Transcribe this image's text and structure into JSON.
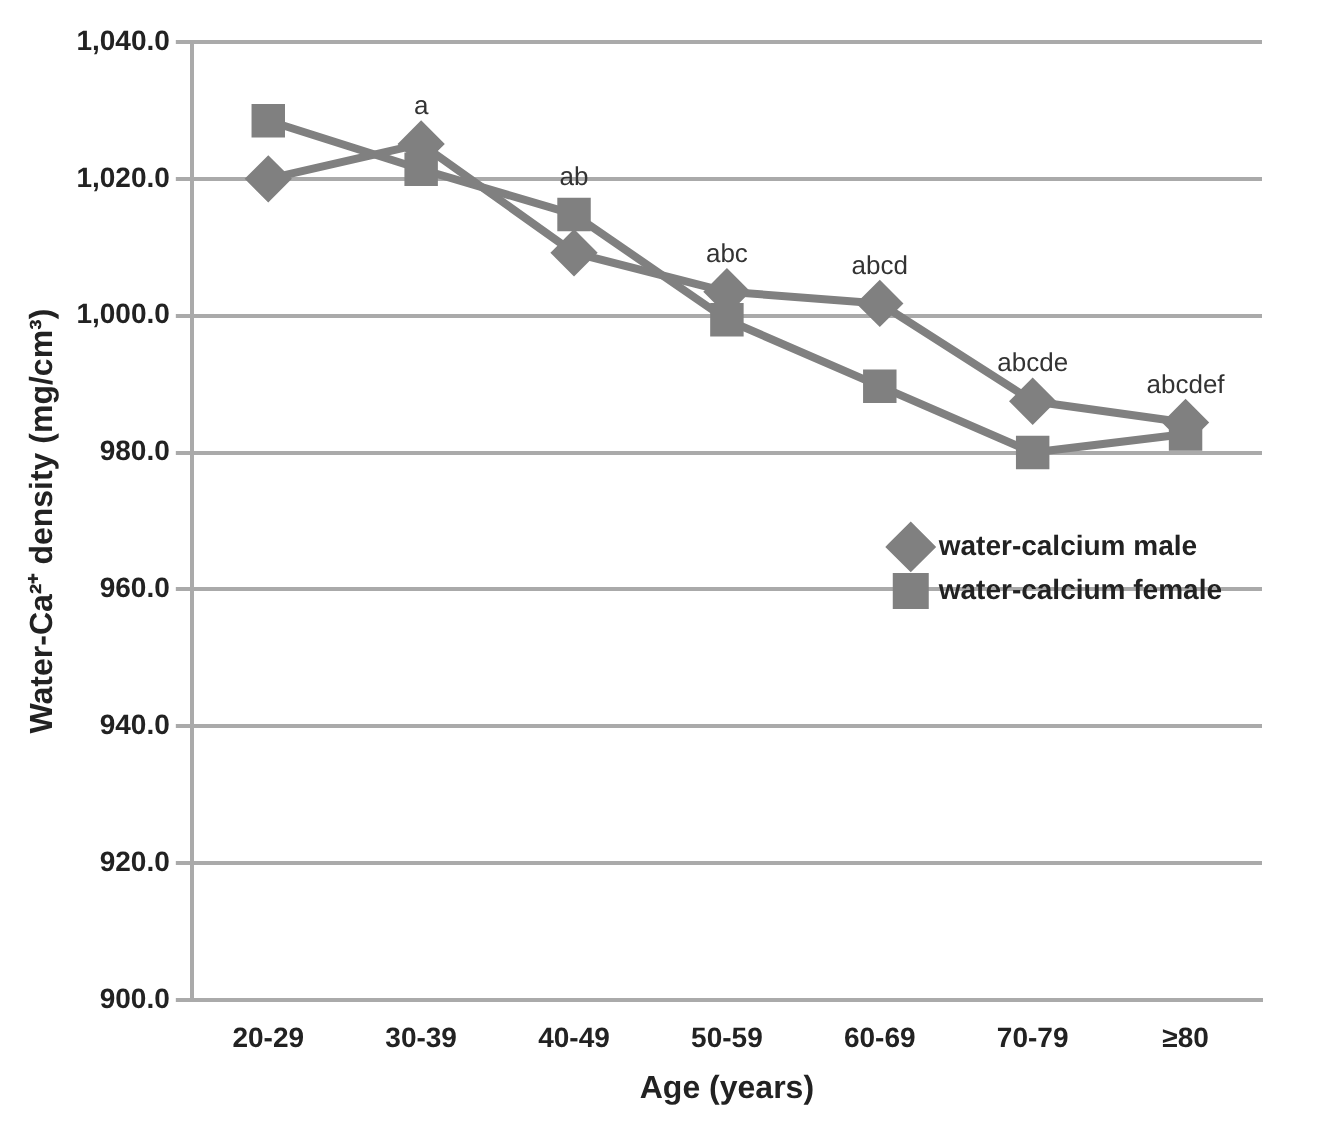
{
  "chart_data": {
    "type": "line",
    "xlabel": "Age (years)",
    "ylabel": "Water-Ca²⁺ density (mg/cm³)",
    "categories": [
      "20-29",
      "30-39",
      "40-49",
      "50-59",
      "60-69",
      "70-79",
      "≥80"
    ],
    "series": [
      {
        "name": "water-calcium male",
        "color": "#808080",
        "marker": "diamond",
        "values": [
          1020.0,
          1025.1,
          1009.2,
          1003.5,
          1001.8,
          987.5,
          984.4
        ]
      },
      {
        "name": "water-calcium female",
        "color": "#808080",
        "marker": "square",
        "values": [
          1028.5,
          1021.4,
          1014.8,
          999.4,
          989.7,
          980.0,
          982.7
        ]
      }
    ],
    "ylim": [
      900,
      1040
    ],
    "yticks": [
      {
        "value": 900,
        "label": "900.0"
      },
      {
        "value": 920,
        "label": "920.0"
      },
      {
        "value": 940,
        "label": "940.0"
      },
      {
        "value": 960,
        "label": "960.0"
      },
      {
        "value": 980,
        "label": "980.0"
      },
      {
        "value": 1000,
        "label": "1,000.0"
      },
      {
        "value": 1020,
        "label": "1,020.0"
      },
      {
        "value": 1040,
        "label": "1,040.0"
      }
    ],
    "grid": "y",
    "legend": "right",
    "line_style": "solid",
    "annotations": [
      {
        "text": "a",
        "x": "30-39",
        "y": 1025.1
      },
      {
        "text": "ab",
        "x": "40-49",
        "y": 1014.8
      },
      {
        "text": "abc",
        "x": "50-59",
        "y": 1003.5
      },
      {
        "text": "abcd",
        "x": "60-69",
        "y": 1001.8
      },
      {
        "text": "abcde",
        "x": "70-79",
        "y": 987.5
      },
      {
        "text": "abcdef",
        "x": "≥80",
        "y": 984.4
      }
    ]
  }
}
